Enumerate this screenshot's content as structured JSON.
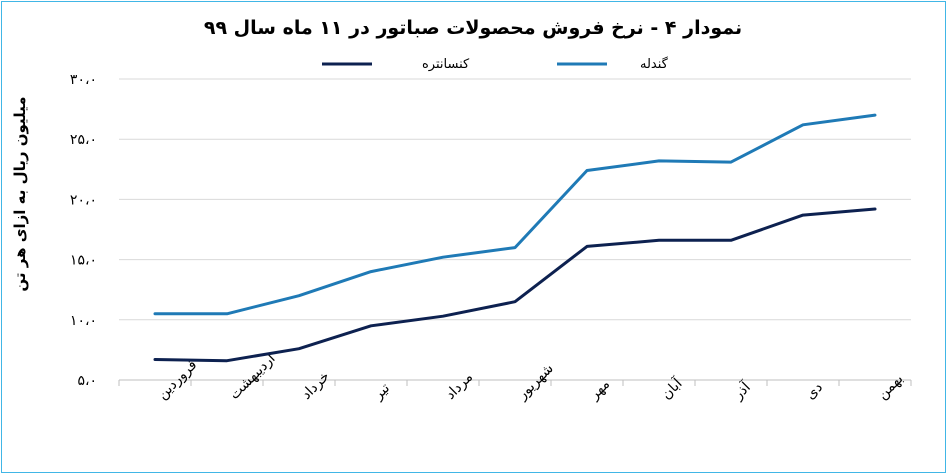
{
  "chart_data": {
    "type": "line",
    "title": "نمودار ۴ - نرخ فروش محصولات صباتور در ۱۱ ماه سال ۹۹",
    "xlabel": "",
    "ylabel": "میلیون ریال به ازای هر تن",
    "ylim": [
      5,
      30
    ],
    "yticks": [
      5,
      10,
      15,
      20,
      25,
      30
    ],
    "ytick_labels": [
      "۵،۰",
      "۱۰،۰",
      "۱۵،۰",
      "۲۰،۰",
      "۲۵،۰",
      "۳۰،۰"
    ],
    "grid": true,
    "legend_position": "top",
    "categories": [
      "فروردین",
      "اردیبهشت",
      "خرداد",
      "تیر",
      "مرداد",
      "شهریور",
      "مهر",
      "آبان",
      "آذر",
      "دی",
      "بهمن"
    ],
    "series": [
      {
        "name": "کنسانتره",
        "color": "#0d2150",
        "values": [
          6.7,
          6.6,
          7.6,
          9.5,
          10.3,
          11.5,
          16.1,
          16.6,
          16.6,
          18.7,
          19.2
        ]
      },
      {
        "name": "گندله",
        "color": "#1f7ab6",
        "values": [
          10.5,
          10.5,
          12.0,
          14.0,
          15.2,
          16.0,
          22.4,
          23.2,
          23.1,
          26.2,
          27.0
        ]
      }
    ]
  }
}
